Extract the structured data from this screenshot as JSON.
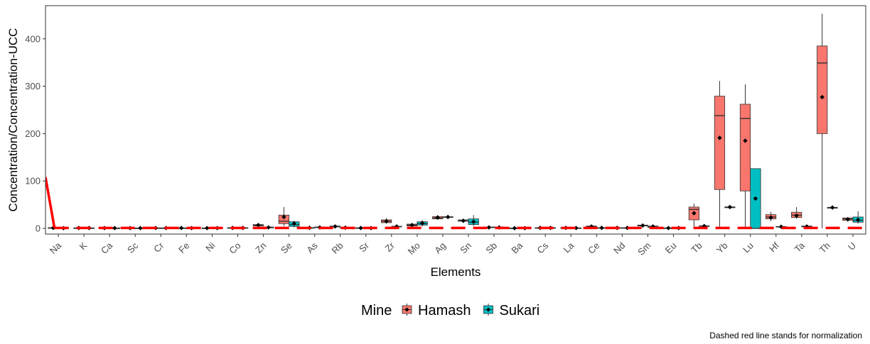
{
  "chart_data": {
    "type": "box",
    "xlabel": "Elements",
    "ylabel": "Concentration/Concentration-UCC",
    "ylim": [
      -12,
      470
    ],
    "yticks": [
      0,
      100,
      200,
      300,
      400
    ],
    "categories": [
      "Na",
      "K",
      "Ca",
      "Sc",
      "Cr",
      "Fe",
      "Ni",
      "Co",
      "Zn",
      "Se",
      "As",
      "Rb",
      "Sr",
      "Zr",
      "Mo",
      "Ag",
      "Sn",
      "Sb",
      "Ba",
      "Cs",
      "La",
      "Ce",
      "Nd",
      "Sm",
      "Eu",
      "Tb",
      "Yb",
      "Lu",
      "Hf",
      "Ta",
      "Th",
      "U"
    ],
    "legend": {
      "title": "Mine",
      "position": "bottom",
      "entries": [
        "Hamash",
        "Sukari"
      ]
    },
    "colors": {
      "Hamash": "#F8766D",
      "Sukari": "#00BFC4",
      "normalization": "#ff0000",
      "mean_marker": "#000000"
    },
    "caption": "Dashed red line stands for normalization",
    "normalization_value": 1,
    "series": [
      {
        "name": "Hamash",
        "boxes": [
          {
            "cat": "Na",
            "min": 0.5,
            "q1": 0.8,
            "median": 1,
            "q3": 1.5,
            "max": 2,
            "mean": 1
          },
          {
            "cat": "K",
            "min": 0.3,
            "q1": 0.5,
            "median": 0.7,
            "q3": 1,
            "max": 1.2,
            "mean": 0.8
          },
          {
            "cat": "Ca",
            "min": 0.2,
            "q1": 0.4,
            "median": 0.6,
            "q3": 0.9,
            "max": 1.1,
            "mean": 0.6
          },
          {
            "cat": "Sc",
            "min": 0.2,
            "q1": 0.4,
            "median": 0.6,
            "q3": 0.8,
            "max": 1,
            "mean": 0.6
          },
          {
            "cat": "Cr",
            "min": 0.2,
            "q1": 0.5,
            "median": 0.7,
            "q3": 1,
            "max": 1.3,
            "mean": 0.8
          },
          {
            "cat": "Fe",
            "min": 0.3,
            "q1": 0.5,
            "median": 0.7,
            "q3": 1,
            "max": 1.2,
            "mean": 0.8
          },
          {
            "cat": "Ni",
            "min": 0.2,
            "q1": 0.4,
            "median": 0.6,
            "q3": 0.8,
            "max": 1,
            "mean": 0.6
          },
          {
            "cat": "Co",
            "min": 0.3,
            "q1": 0.6,
            "median": 1,
            "q3": 1.5,
            "max": 2,
            "mean": 1
          },
          {
            "cat": "Zn",
            "min": 3,
            "q1": 5,
            "median": 7,
            "q3": 8,
            "max": 10,
            "mean": 7
          },
          {
            "cat": "Se",
            "min": 5,
            "q1": 10,
            "median": 15,
            "q3": 28,
            "max": 45,
            "mean": 24
          },
          {
            "cat": "As",
            "min": 0.5,
            "q1": 0.8,
            "median": 1.2,
            "q3": 1.8,
            "max": 2.5,
            "mean": 1.3
          },
          {
            "cat": "Rb",
            "min": 2,
            "q1": 3,
            "median": 4,
            "q3": 5,
            "max": 6,
            "mean": 4
          },
          {
            "cat": "Sr",
            "min": 0.3,
            "q1": 0.5,
            "median": 0.8,
            "q3": 1.2,
            "max": 1.5,
            "mean": 0.8
          },
          {
            "cat": "Zr",
            "min": 10,
            "q1": 12,
            "median": 15,
            "q3": 18,
            "max": 22,
            "mean": 15
          },
          {
            "cat": "Mo",
            "min": 4,
            "q1": 5,
            "median": 7,
            "q3": 9,
            "max": 11,
            "mean": 7
          },
          {
            "cat": "Ag",
            "min": 18,
            "q1": 20,
            "median": 22,
            "q3": 25,
            "max": 28,
            "mean": 23
          },
          {
            "cat": "Sn",
            "min": 14,
            "q1": 15,
            "median": 16,
            "q3": 18,
            "max": 20,
            "mean": 16
          },
          {
            "cat": "Sb",
            "min": 1,
            "q1": 1.5,
            "median": 2,
            "q3": 3,
            "max": 4,
            "mean": 2
          },
          {
            "cat": "Ba",
            "min": 0.2,
            "q1": 0.4,
            "median": 0.5,
            "q3": 0.7,
            "max": 0.9,
            "mean": 0.5
          },
          {
            "cat": "Cs",
            "min": 0.5,
            "q1": 0.8,
            "median": 1,
            "q3": 1.5,
            "max": 2,
            "mean": 1.1
          },
          {
            "cat": "La",
            "min": 0.5,
            "q1": 0.8,
            "median": 1,
            "q3": 1.5,
            "max": 2,
            "mean": 1.1
          },
          {
            "cat": "Ce",
            "min": 2,
            "q1": 3,
            "median": 4,
            "q3": 5,
            "max": 6,
            "mean": 4
          },
          {
            "cat": "Nd",
            "min": 0.5,
            "q1": 0.8,
            "median": 1,
            "q3": 1.5,
            "max": 2,
            "mean": 1.1
          },
          {
            "cat": "Sm",
            "min": 4,
            "q1": 5,
            "median": 6,
            "q3": 7,
            "max": 9,
            "mean": 6
          },
          {
            "cat": "Eu",
            "min": 0.3,
            "q1": 0.5,
            "median": 0.7,
            "q3": 1,
            "max": 1.3,
            "mean": 0.8
          },
          {
            "cat": "Tb",
            "min": 0,
            "q1": 18,
            "median": 40,
            "q3": 45,
            "max": 52,
            "mean": 32
          },
          {
            "cat": "Yb",
            "min": 0,
            "q1": 82,
            "median": 238,
            "q3": 279,
            "max": 311,
            "mean": 191
          },
          {
            "cat": "Lu",
            "min": 0,
            "q1": 79,
            "median": 232,
            "q3": 262,
            "max": 304,
            "mean": 185
          },
          {
            "cat": "Hf",
            "min": 15,
            "q1": 20,
            "median": 24,
            "q3": 29,
            "max": 35,
            "mean": 23
          },
          {
            "cat": "Ta",
            "min": 20,
            "q1": 23,
            "median": 28,
            "q3": 34,
            "max": 45,
            "mean": 27
          },
          {
            "cat": "Th",
            "min": 0,
            "q1": 200,
            "median": 349,
            "q3": 385,
            "max": 453,
            "mean": 277
          },
          {
            "cat": "U",
            "min": 15,
            "q1": 17,
            "median": 20,
            "q3": 22,
            "max": 24,
            "mean": 19
          }
        ]
      },
      {
        "name": "Sukari",
        "boxes": [
          {
            "cat": "Na",
            "min": 0.2,
            "q1": 0.4,
            "median": 0.5,
            "q3": 0.7,
            "max": 0.9,
            "mean": 0.5
          },
          {
            "cat": "K",
            "min": 0.3,
            "q1": 0.5,
            "median": 0.7,
            "q3": 1,
            "max": 1.2,
            "mean": 0.8
          },
          {
            "cat": "Ca",
            "min": 0.2,
            "q1": 0.4,
            "median": 0.6,
            "q3": 0.8,
            "max": 1,
            "mean": 0.6
          },
          {
            "cat": "Sc",
            "min": 0.2,
            "q1": 0.4,
            "median": 0.6,
            "q3": 0.8,
            "max": 1,
            "mean": 0.6
          },
          {
            "cat": "Cr",
            "min": 0.2,
            "q1": 0.5,
            "median": 0.7,
            "q3": 1,
            "max": 1.3,
            "mean": 0.8
          },
          {
            "cat": "Fe",
            "min": 0.2,
            "q1": 0.4,
            "median": 0.6,
            "q3": 0.8,
            "max": 1,
            "mean": 0.6
          },
          {
            "cat": "Ni",
            "min": 0.2,
            "q1": 0.4,
            "median": 0.6,
            "q3": 0.8,
            "max": 1,
            "mean": 0.6
          },
          {
            "cat": "Co",
            "min": 0.3,
            "q1": 0.6,
            "median": 1,
            "q3": 1.5,
            "max": 2,
            "mean": 1
          },
          {
            "cat": "Zn",
            "min": 0.5,
            "q1": 1,
            "median": 2,
            "q3": 3,
            "max": 4,
            "mean": 2
          },
          {
            "cat": "Se",
            "min": 2,
            "q1": 4,
            "median": 8,
            "q3": 14,
            "max": 16,
            "mean": 10
          },
          {
            "cat": "As",
            "min": 1,
            "q1": 1.5,
            "median": 2,
            "q3": 3,
            "max": 4,
            "mean": 2
          },
          {
            "cat": "Rb",
            "min": 0.5,
            "q1": 1,
            "median": 1.5,
            "q3": 2,
            "max": 3,
            "mean": 1.5
          },
          {
            "cat": "Sr",
            "min": 0.2,
            "q1": 0.4,
            "median": 0.6,
            "q3": 0.8,
            "max": 1,
            "mean": 0.6
          },
          {
            "cat": "Zr",
            "min": 2,
            "q1": 3,
            "median": 4,
            "q3": 4.5,
            "max": 5,
            "mean": 4
          },
          {
            "cat": "Mo",
            "min": 4,
            "q1": 7,
            "median": 10,
            "q3": 14,
            "max": 18,
            "mean": 11
          },
          {
            "cat": "Ag",
            "min": 22,
            "q1": 23,
            "median": 24,
            "q3": 24.5,
            "max": 25,
            "mean": 24
          },
          {
            "cat": "Sn",
            "min": 5,
            "q1": 8,
            "median": 13,
            "q3": 20,
            "max": 28,
            "mean": 14
          },
          {
            "cat": "Sb",
            "min": 1,
            "q1": 1.5,
            "median": 2,
            "q3": 3,
            "max": 4,
            "mean": 2
          },
          {
            "cat": "Ba",
            "min": 0.2,
            "q1": 0.4,
            "median": 0.5,
            "q3": 0.7,
            "max": 0.9,
            "mean": 0.5
          },
          {
            "cat": "Cs",
            "min": 0.5,
            "q1": 0.8,
            "median": 1,
            "q3": 1.5,
            "max": 2,
            "mean": 1.1
          },
          {
            "cat": "La",
            "min": 0.3,
            "q1": 0.5,
            "median": 0.7,
            "q3": 1,
            "max": 1.3,
            "mean": 0.8
          },
          {
            "cat": "Ce",
            "min": 0.5,
            "q1": 0.8,
            "median": 1,
            "q3": 1.5,
            "max": 2,
            "mean": 1.1
          },
          {
            "cat": "Nd",
            "min": 0.5,
            "q1": 0.8,
            "median": 1,
            "q3": 1.5,
            "max": 2,
            "mean": 1.1
          },
          {
            "cat": "Sm",
            "min": 1,
            "q1": 2,
            "median": 3,
            "q3": 5,
            "max": 8,
            "mean": 4
          },
          {
            "cat": "Eu",
            "min": 0.3,
            "q1": 0.5,
            "median": 0.7,
            "q3": 1,
            "max": 1.3,
            "mean": 0.8
          },
          {
            "cat": "Tb",
            "min": 4,
            "q1": 4.5,
            "median": 5,
            "q3": 5.5,
            "max": 6,
            "mean": 5
          },
          {
            "cat": "Yb",
            "min": 45,
            "q1": 45,
            "median": 45,
            "q3": 45,
            "max": 45,
            "mean": 45
          },
          {
            "cat": "Lu",
            "min": 0,
            "q1": 0,
            "median": 0,
            "q3": 126,
            "max": 126,
            "mean": 63
          },
          {
            "cat": "Hf",
            "min": 2,
            "q1": 3,
            "median": 3.5,
            "q3": 4,
            "max": 5,
            "mean": 3.5
          },
          {
            "cat": "Ta",
            "min": 2,
            "q1": 3,
            "median": 4,
            "q3": 5,
            "max": 6,
            "mean": 4
          },
          {
            "cat": "Th",
            "min": 44,
            "q1": 44,
            "median": 44,
            "q3": 44,
            "max": 44,
            "mean": 44
          },
          {
            "cat": "U",
            "min": 10,
            "q1": 13,
            "median": 17,
            "q3": 24,
            "max": 36,
            "mean": 18
          }
        ]
      }
    ]
  }
}
